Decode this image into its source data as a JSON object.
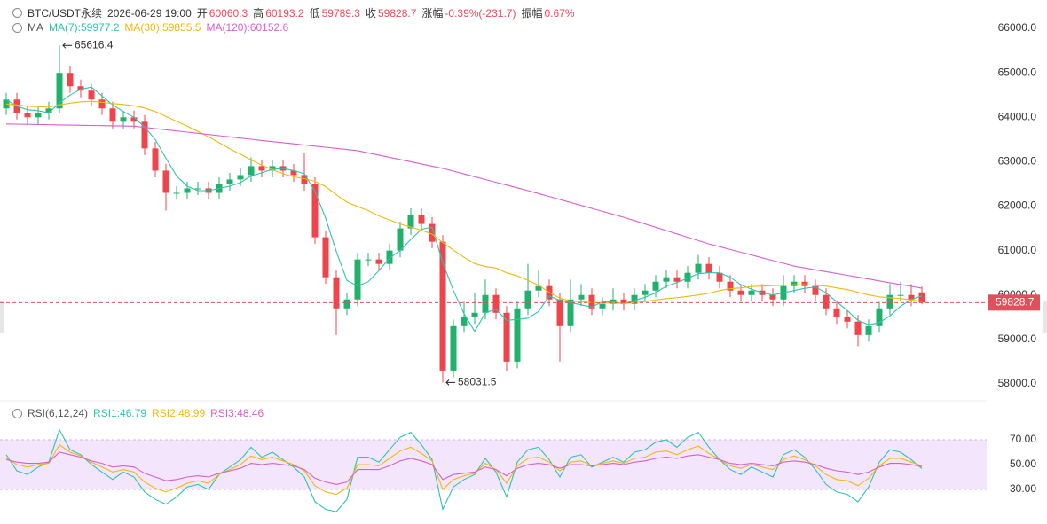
{
  "header": {
    "symbol": "BTC/USDT永续",
    "time": "2026-06-29 19:00",
    "open_label": "开",
    "high_label": "高",
    "low_label": "低",
    "close_label": "收",
    "change_label": "涨幅",
    "change": "-0.39%(-231.7)",
    "amplitude_label": "振幅",
    "amplitude": "0.67%"
  },
  "chart_data": [
    {
      "type": "candlestick",
      "indicator": "MA",
      "up_color": "#20b26c",
      "down_color": "#ef454a",
      "last_color": "#e0505a",
      "ylim": [
        57760,
        66640
      ],
      "yticks": [
        {
          "value": 58000,
          "label": "58000.0"
        },
        {
          "value": 59000,
          "label": "59000.0"
        },
        {
          "value": 60000,
          "label": "60000.0"
        },
        {
          "value": 61000,
          "label": "61000.0"
        },
        {
          "value": 62000,
          "label": "62000.0"
        },
        {
          "value": 63000,
          "label": "63000.0"
        },
        {
          "value": 64000,
          "label": "64000.0"
        },
        {
          "value": 65000,
          "label": "65000.0"
        },
        {
          "value": 66000,
          "label": "66000.0"
        }
      ],
      "open": [
        64200,
        64400,
        64100,
        64000,
        64100,
        64200,
        65000,
        64700,
        64600,
        64400,
        64200,
        63900,
        64000,
        63900,
        63300,
        62800,
        62300,
        62300,
        62400,
        62400,
        62300,
        62500,
        62600,
        62700,
        62900,
        62800,
        62900,
        62800,
        62700,
        62500,
        61300,
        60400,
        59700,
        59900,
        60800,
        60800,
        60700,
        61000,
        61500,
        61800,
        61600,
        61200,
        58300,
        59300,
        59500,
        59600,
        60000,
        59600,
        58500,
        59700,
        60100,
        60200,
        59900,
        59300,
        59900,
        60000,
        59700,
        59800,
        59900,
        59800,
        60000,
        60100,
        60300,
        60400,
        60300,
        60500,
        60700,
        60500,
        60300,
        60100,
        60000,
        60100,
        60000,
        59900,
        60200,
        60300,
        60200,
        60000,
        59700,
        59500,
        59400,
        59100,
        59300,
        59700,
        60000,
        60000,
        60060.3
      ],
      "high": [
        64550,
        64550,
        64250,
        64250,
        64350,
        65616.4,
        65150,
        64850,
        64750,
        64550,
        64350,
        64150,
        64150,
        64050,
        63450,
        62950,
        62450,
        62550,
        62550,
        62550,
        62650,
        62750,
        62850,
        63100,
        63050,
        63050,
        63050,
        62950,
        63200,
        62650,
        61450,
        60550,
        60050,
        60950,
        60950,
        60950,
        61150,
        61650,
        61950,
        61950,
        61750,
        61350,
        59450,
        59850,
        60050,
        60350,
        60150,
        59750,
        59850,
        60700,
        60550,
        60350,
        60050,
        60350,
        60250,
        60150,
        59950,
        60150,
        60050,
        60150,
        60250,
        60450,
        60550,
        60550,
        60650,
        60900,
        60850,
        60650,
        60450,
        60250,
        60250,
        60250,
        60150,
        60450,
        60450,
        60450,
        60350,
        60150,
        59850,
        59650,
        59550,
        59450,
        59850,
        60250,
        60300,
        60250,
        60193.2
      ],
      "low": [
        64050,
        63950,
        63850,
        63850,
        63950,
        64100,
        64550,
        64450,
        64250,
        64050,
        63750,
        63750,
        63750,
        63150,
        62650,
        61900,
        62150,
        62150,
        62250,
        62150,
        62150,
        62350,
        62450,
        62550,
        62650,
        62650,
        62650,
        62550,
        62350,
        61150,
        60250,
        59100,
        59550,
        59750,
        60650,
        60550,
        60550,
        60850,
        61350,
        61450,
        61050,
        58031.5,
        58150,
        59150,
        59350,
        59450,
        59450,
        58300,
        58350,
        59550,
        59950,
        59750,
        58500,
        59150,
        59750,
        59550,
        59550,
        59650,
        59650,
        59650,
        59850,
        59950,
        60150,
        60150,
        60150,
        60350,
        60350,
        60150,
        59950,
        59850,
        59850,
        59850,
        59750,
        59750,
        60050,
        60050,
        59850,
        59550,
        59350,
        59250,
        58850,
        58950,
        59150,
        59550,
        59850,
        59750,
        59789.3
      ],
      "close": [
        64400,
        64100,
        64000,
        64100,
        64200,
        65000,
        64700,
        64600,
        64400,
        64200,
        63900,
        64000,
        63900,
        63300,
        62800,
        62300,
        62300,
        62400,
        62400,
        62300,
        62500,
        62600,
        62700,
        62900,
        62800,
        62900,
        62800,
        62700,
        62500,
        61300,
        60400,
        59700,
        59900,
        60800,
        60800,
        60700,
        61000,
        61500,
        61800,
        61600,
        61200,
        58300,
        59300,
        59500,
        59600,
        60000,
        59600,
        58500,
        59700,
        60100,
        60200,
        59900,
        59300,
        59900,
        60000,
        59700,
        59800,
        59900,
        59800,
        60000,
        60100,
        60300,
        60400,
        60300,
        60500,
        60700,
        60500,
        60300,
        60100,
        60000,
        60100,
        60000,
        59900,
        60200,
        60300,
        60200,
        60000,
        59700,
        59500,
        59400,
        59100,
        59300,
        59700,
        60000,
        60000,
        59900,
        59828.7
      ],
      "series": [
        {
          "name": "MA(7):59977.2",
          "color": "#2fc2b0",
          "values": [
            64400,
            64250,
            64170,
            64150,
            64100,
            64330,
            64500,
            64630,
            64680,
            64480,
            64280,
            64130,
            64000,
            63780,
            63500,
            63080,
            62680,
            62450,
            62350,
            62350,
            62400,
            62450,
            62530,
            62680,
            62750,
            62830,
            62850,
            62800,
            62730,
            62330,
            61730,
            60980,
            60330,
            60200,
            60300,
            60550,
            60830,
            61000,
            61250,
            61480,
            61530,
            60730,
            60100,
            59580,
            59180,
            59600,
            59680,
            59430,
            59450,
            59480,
            59630,
            59980,
            59880,
            59830,
            59780,
            59730,
            59850,
            59850,
            59800,
            59880,
            59950,
            60050,
            60200,
            60280,
            60380,
            60480,
            60500,
            60500,
            60400,
            60230,
            60130,
            60050,
            60000,
            60050,
            60100,
            60150,
            60180,
            60050,
            59850,
            59650,
            59430,
            59330,
            59380,
            59530,
            59750,
            59900,
            59977.2
          ]
        },
        {
          "name": "MA(30):59855.5",
          "color": "#f0b90b",
          "values": [
            64300,
            64280,
            64250,
            64240,
            64230,
            64280,
            64320,
            64350,
            64360,
            64340,
            64310,
            64290,
            64260,
            64210,
            64130,
            64020,
            63910,
            63800,
            63680,
            63560,
            63430,
            63290,
            63170,
            63040,
            62920,
            62820,
            62730,
            62660,
            62620,
            62560,
            62440,
            62260,
            62090,
            61990,
            61900,
            61780,
            61690,
            61600,
            61530,
            61460,
            61370,
            61180,
            61010,
            60850,
            60710,
            60640,
            60610,
            60500,
            60430,
            60330,
            60220,
            60060,
            59930,
            59860,
            59850,
            59830,
            59820,
            59820,
            59810,
            59830,
            59850,
            59890,
            59920,
            59940,
            59970,
            60000,
            60040,
            60100,
            60140,
            60160,
            60190,
            60200,
            60210,
            60220,
            60230,
            60230,
            60220,
            60200,
            60160,
            60120,
            60060,
            60000,
            59960,
            59940,
            59920,
            59890,
            59855.5
          ]
        },
        {
          "name": "MA(120):60152.6",
          "color": "#d65fd0",
          "values": [
            63850,
            63846,
            63842,
            63838,
            63833,
            63829,
            63825,
            63821,
            63817,
            63813,
            63808,
            63804,
            63800,
            63773,
            63747,
            63720,
            63693,
            63667,
            63640,
            63613,
            63587,
            63560,
            63533,
            63507,
            63480,
            63454,
            63429,
            63403,
            63378,
            63352,
            63327,
            63301,
            63276,
            63250,
            63200,
            63150,
            63100,
            63050,
            63000,
            62950,
            62900,
            62850,
            62788,
            62725,
            62663,
            62600,
            62538,
            62475,
            62413,
            62350,
            62283,
            62217,
            62150,
            62083,
            62017,
            61950,
            61883,
            61817,
            61750,
            61675,
            61600,
            61525,
            61450,
            61375,
            61300,
            61225,
            61150,
            61088,
            61025,
            60963,
            60900,
            60838,
            60775,
            60713,
            60650,
            60609,
            60567,
            60526,
            60485,
            60443,
            60402,
            60360,
            60319,
            60277,
            60236,
            60195,
            60152.6
          ]
        }
      ]
    },
    {
      "type": "line",
      "indicator": "RSI(6,12,24)",
      "band_color": "#f3e6fc",
      "ylim": [
        10,
        90
      ],
      "yticks": [
        {
          "value": 30,
          "label": "30.00"
        },
        {
          "value": 50,
          "label": "50.00"
        },
        {
          "value": 70,
          "label": "70.00"
        }
      ],
      "series": [
        {
          "name": "RSI1:46.79",
          "color": "#2fc2b0",
          "values": [
            58,
            45,
            42,
            48,
            52,
            78,
            62,
            58,
            50,
            44,
            38,
            44,
            40,
            28,
            22,
            18,
            24,
            32,
            34,
            30,
            42,
            48,
            54,
            64,
            56,
            60,
            54,
            48,
            40,
            20,
            14,
            12,
            22,
            56,
            56,
            52,
            62,
            72,
            76,
            66,
            54,
            14,
            32,
            38,
            42,
            55,
            44,
            24,
            52,
            62,
            64,
            54,
            40,
            56,
            58,
            48,
            52,
            56,
            52,
            60,
            62,
            68,
            70,
            64,
            72,
            76,
            64,
            54,
            46,
            42,
            48,
            44,
            40,
            58,
            62,
            56,
            46,
            34,
            28,
            26,
            20,
            32,
            52,
            62,
            60,
            54,
            46.79
          ]
        },
        {
          "name": "RSI2:48.99",
          "color": "#f0b90b",
          "values": [
            55,
            50,
            48,
            50,
            51,
            66,
            60,
            57,
            52,
            48,
            44,
            46,
            44,
            36,
            31,
            28,
            31,
            35,
            37,
            35,
            42,
            46,
            50,
            57,
            54,
            56,
            53,
            50,
            45,
            33,
            28,
            26,
            31,
            50,
            50,
            49,
            55,
            61,
            64,
            59,
            53,
            30,
            38,
            41,
            43,
            51,
            46,
            35,
            49,
            55,
            56,
            52,
            45,
            52,
            53,
            49,
            51,
            53,
            51,
            55,
            56,
            60,
            61,
            58,
            62,
            65,
            59,
            54,
            49,
            47,
            50,
            48,
            46,
            54,
            57,
            54,
            49,
            42,
            38,
            37,
            33,
            39,
            49,
            55,
            55,
            52,
            48.99
          ]
        },
        {
          "name": "RSI3:48.46",
          "color": "#d65fd0",
          "values": [
            54,
            52,
            51,
            51,
            52,
            60,
            58,
            56,
            53,
            51,
            48,
            49,
            48,
            43,
            40,
            37,
            38,
            40,
            41,
            40,
            43,
            45,
            47,
            51,
            50,
            51,
            50,
            49,
            46,
            39,
            36,
            34,
            36,
            46,
            46,
            46,
            49,
            53,
            55,
            53,
            50,
            38,
            42,
            43,
            44,
            48,
            46,
            41,
            47,
            50,
            51,
            50,
            47,
            50,
            50,
            49,
            50,
            51,
            50,
            52,
            53,
            55,
            56,
            55,
            57,
            58,
            56,
            54,
            51,
            50,
            51,
            50,
            49,
            52,
            53,
            52,
            50,
            47,
            45,
            44,
            42,
            44,
            48,
            51,
            51,
            50,
            48.46
          ]
        }
      ]
    }
  ]
}
